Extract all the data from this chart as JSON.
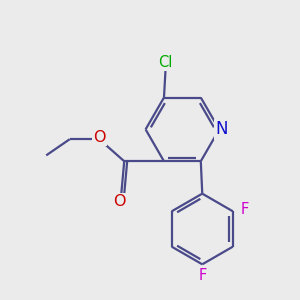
{
  "bg_color": "#ebebeb",
  "bond_color": "#4a4a8a",
  "bond_width": 1.6,
  "atom_colors": {
    "N": "#1010cc",
    "O": "#cc0000",
    "F": "#cc00cc",
    "Cl": "#00aa00",
    "C": "#4a4a8a"
  },
  "font_size": 10.5
}
